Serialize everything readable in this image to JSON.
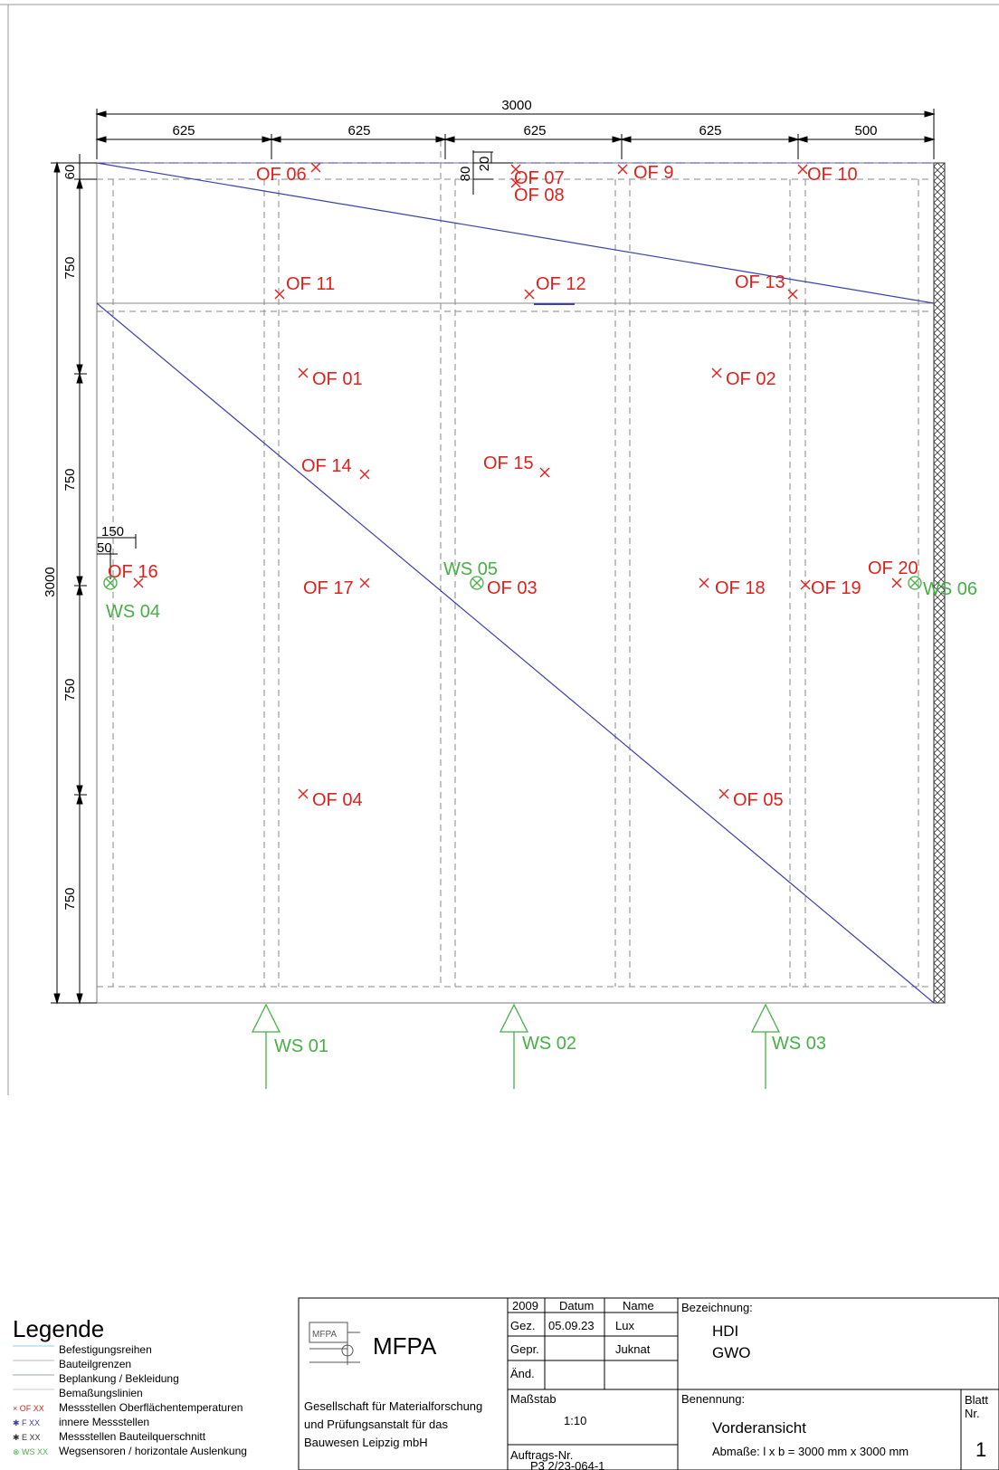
{
  "dimensions": {
    "top_total": "3000",
    "top_segments": [
      "625",
      "625",
      "625",
      "625",
      "500"
    ],
    "left_total": "3000",
    "left_segments": [
      "60",
      "750",
      "750",
      "750",
      "750"
    ],
    "small_80": "80",
    "small_20": "20",
    "small_150": "150",
    "small_50": "50"
  },
  "surface_sensors": {
    "of01": "OF 01",
    "of02": "OF 02",
    "of03": "OF 03",
    "of04": "OF 04",
    "of05": "OF 05",
    "of06": "OF 06",
    "of07": "OF 07",
    "of08": "OF 08",
    "of9": "OF 9",
    "of10": "OF 10",
    "of11": "OF 11",
    "of12": "OF 12",
    "of13": "OF 13",
    "of14": "OF 14",
    "of15": "OF 15",
    "of16": "OF 16",
    "of17": "OF 17",
    "of18": "OF 18",
    "of19": "OF 19",
    "of20": "OF 20"
  },
  "displacement_sensors": {
    "ws01": "WS 01",
    "ws02": "WS 02",
    "ws03": "WS 03",
    "ws04": "WS 04",
    "ws05": "WS 05",
    "ws06": "WS 06"
  },
  "legend": {
    "title": "Legende",
    "items": [
      {
        "symbol": "",
        "label": "Befestigungsreihen"
      },
      {
        "symbol": "",
        "label": "Bauteilgrenzen"
      },
      {
        "symbol": "",
        "label": "Beplankung / Bekleidung"
      },
      {
        "symbol": "",
        "label": "Bemaßungslinien"
      },
      {
        "symbol": "× OF XX",
        "label": "Messstellen Oberflächentemperaturen"
      },
      {
        "symbol": "✱ F XX",
        "label": "innere Messstellen"
      },
      {
        "symbol": "✱ E XX",
        "label": "Messstellen Bauteilquerschnitt"
      },
      {
        "symbol": "⊗ WS XX",
        "label": "Wegsensoren / horizontale Auslenkung"
      }
    ]
  },
  "title_block": {
    "logo_text": "MFPA",
    "logo_small": "MFPA",
    "company_line1": "Gesellschaft für Materialforschung",
    "company_line2": "und Prüfungsanstalt für das",
    "company_line3": "Bauwesen Leipzig mbH",
    "year": "2009",
    "col_datum": "Datum",
    "col_name": "Name",
    "row_gez": "Gez.",
    "gez_datum": "05.09.23",
    "gez_name": "Lux",
    "row_gepr": "Gepr.",
    "gepr_name": "Juknat",
    "row_aend": "Änd.",
    "massstab_label": "Maßstab",
    "massstab_value": "1:10",
    "auftrag_label": "Auftrags-Nr.",
    "auftrag_value": "P3 2/23-064-1",
    "bezeichnung_label": "Bezeichnung:",
    "bezeichnung_1": "HDI",
    "bezeichnung_2": "GWO",
    "benennung_label": "Benennung:",
    "benennung_value": "Vorderansicht",
    "abmasse": "Abmaße: l x b = 3000 mm x 3000 mm",
    "blatt_label1": "Blatt",
    "blatt_label2": "Nr.",
    "blatt_value": "1"
  },
  "colors": {
    "sensor_surface": "#e0211b",
    "sensor_displacement": "#46b045",
    "planking_line": "#3b3fae"
  }
}
